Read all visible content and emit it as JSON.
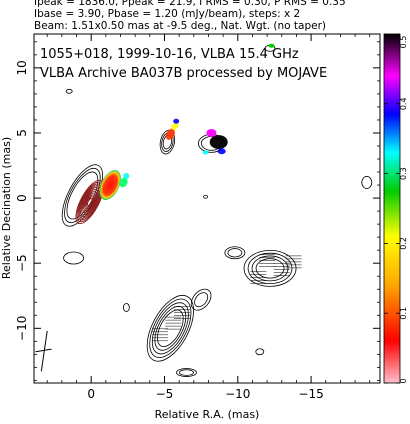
{
  "header": {
    "line0": "Ipeak = 1836.0, Ppeak = 21.9, I RMS = 0.30, P RMS = 0.35",
    "line1": "Ibase = 3.90, Pbase = 1.20 (mJy/beam), steps: x 2",
    "line2": "Beam: 1.51x0.50 mas at -9.5 deg., Nat. Wgt. (no taper)"
  },
  "chart_data": {
    "type": "contour",
    "title_line1": "1055+018, 1999-10-16, VLBA 15.4 GHz",
    "title_line2": "VLBA Archive BA037B processed by MOJAVE",
    "xlabel": "Relative R.A. (mas)",
    "ylabel": "Relative Decination (mas)",
    "xlim": [
      3.9,
      -19.7
    ],
    "ylim": [
      -14.2,
      12.6
    ],
    "x_ticks": [
      0,
      -5,
      -10,
      -15
    ],
    "x_tick_labels": [
      "0",
      "−5",
      "−10",
      "−15"
    ],
    "y_ticks": [
      10,
      5,
      0,
      -5,
      -10
    ],
    "y_tick_labels": [
      "10",
      "5",
      "0",
      "−5",
      "−10"
    ],
    "colorbar": {
      "range": [
        0,
        0.5
      ],
      "ticks": [
        "0",
        "0.1",
        "0.2",
        "0.3",
        "0.4",
        "0.5"
      ],
      "colors": [
        "#ffc0cb",
        "#ff0000",
        "#ffa500",
        "#ffff00",
        "#00cc00",
        "#00ffff",
        "#0000ff",
        "#ff00ff",
        "#000000"
      ]
    },
    "colors": {
      "core_contours": "#8b1a1a",
      "outer_contours": "#000000"
    }
  }
}
